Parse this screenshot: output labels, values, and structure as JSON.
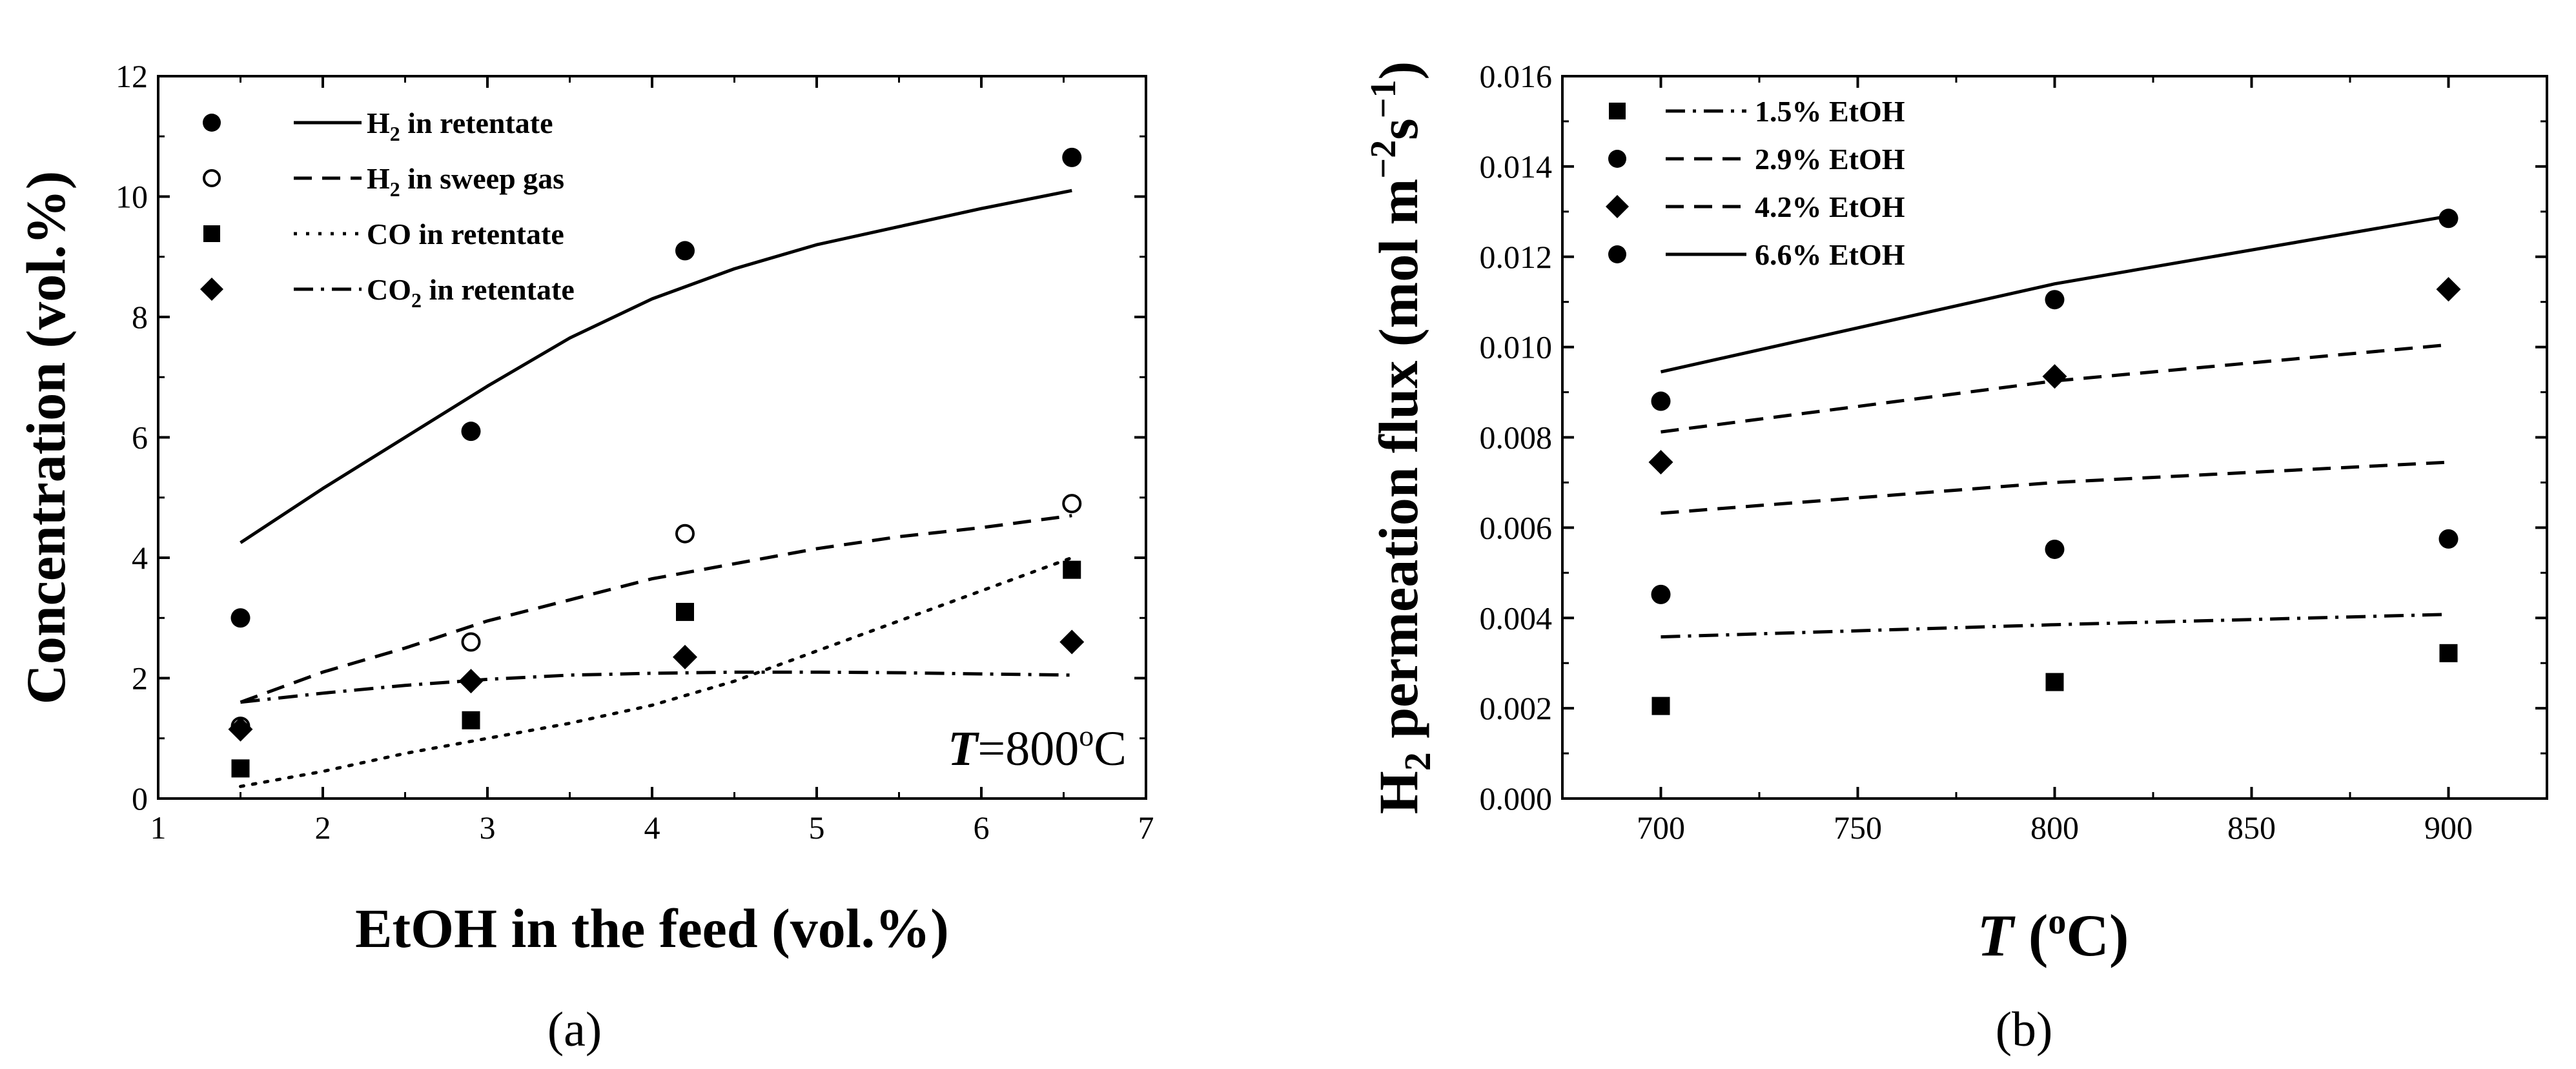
{
  "chart_data": [
    {
      "panel": "(a)",
      "type": "scatter",
      "title": "",
      "xlabel": "EtOH in the feed (vol.%)",
      "ylabel": "Concentration (vol.%)",
      "xlim": [
        1,
        7
      ],
      "ylim": [
        0,
        12
      ],
      "xticks": [
        1,
        2,
        3,
        4,
        5,
        6,
        7
      ],
      "yticks": [
        0,
        2,
        4,
        6,
        8,
        10,
        12
      ],
      "annotation": {
        "italic": "T",
        "text": "=800",
        "sup": "o",
        "unit": "C"
      },
      "series": [
        {
          "name": "H2 in retentate",
          "label_parts": [
            "H",
            "2",
            " in retentate"
          ],
          "marker": "circle-filled",
          "line": "solid",
          "x": [
            1.5,
            2.9,
            4.2,
            6.55
          ],
          "y": [
            3.0,
            6.1,
            9.1,
            10.65
          ],
          "fit_x": [
            1.5,
            2.0,
            2.5,
            3.0,
            3.5,
            4.0,
            4.5,
            5.0,
            5.5,
            6.0,
            6.55
          ],
          "fit_y": [
            4.25,
            5.15,
            6.0,
            6.85,
            7.65,
            8.3,
            8.8,
            9.2,
            9.5,
            9.8,
            10.1
          ]
        },
        {
          "name": "H2 in sweep gas",
          "label_parts": [
            "H",
            "2",
            " in sweep gas"
          ],
          "marker": "circle-open",
          "line": "dashed",
          "x": [
            1.5,
            2.9,
            4.2,
            6.55
          ],
          "y": [
            1.2,
            2.6,
            4.4,
            4.9
          ],
          "fit_x": [
            1.5,
            2.0,
            2.5,
            3.0,
            3.5,
            4.0,
            4.5,
            5.0,
            5.5,
            6.0,
            6.55
          ],
          "fit_y": [
            1.6,
            2.1,
            2.5,
            2.95,
            3.3,
            3.65,
            3.9,
            4.15,
            4.35,
            4.5,
            4.7
          ]
        },
        {
          "name": "CO in retentate",
          "label_parts": [
            "CO in retentate",
            "",
            ""
          ],
          "marker": "square-filled",
          "line": "dotted",
          "x": [
            1.5,
            2.9,
            4.2,
            6.55
          ],
          "y": [
            0.5,
            1.3,
            3.1,
            3.8
          ],
          "fit_x": [
            1.5,
            2.0,
            2.5,
            3.0,
            3.5,
            4.0,
            4.5,
            5.0,
            5.5,
            6.0,
            6.55
          ],
          "fit_y": [
            0.2,
            0.45,
            0.75,
            1.0,
            1.25,
            1.55,
            1.95,
            2.45,
            2.95,
            3.45,
            4.0
          ]
        },
        {
          "name": "CO2 in retentate",
          "label_parts": [
            "CO",
            "2",
            " in retentate"
          ],
          "marker": "diamond-filled",
          "line": "dashdot",
          "x": [
            1.5,
            2.9,
            4.2,
            6.55
          ],
          "y": [
            1.15,
            1.95,
            2.35,
            2.6
          ],
          "fit_x": [
            1.5,
            2.0,
            2.5,
            3.0,
            3.5,
            4.0,
            4.5,
            5.0,
            5.5,
            6.0,
            6.55
          ],
          "fit_y": [
            1.6,
            1.75,
            1.88,
            1.98,
            2.05,
            2.08,
            2.1,
            2.1,
            2.09,
            2.07,
            2.05
          ]
        }
      ]
    },
    {
      "panel": "(b)",
      "type": "scatter",
      "title": "",
      "xlabel": {
        "italic": "T",
        "text": " (",
        "sup": "o",
        "unit": "C)"
      },
      "ylabel": {
        "base": "H",
        "sub": "2",
        "text": " permeation flux (mol m",
        "sup1": "−2",
        "mid": "s",
        "sup2": "−1",
        "end": ")"
      },
      "xlim": [
        675,
        925
      ],
      "ylim": [
        0,
        0.016
      ],
      "xticks": [
        700,
        750,
        800,
        850,
        900
      ],
      "yticks": [
        "0.000",
        "0.002",
        "0.004",
        "0.006",
        "0.008",
        "0.010",
        "0.012",
        "0.014",
        "0.016"
      ],
      "series": [
        {
          "name": "1.5% EtOH",
          "marker": "square-filled",
          "line": "dashdot",
          "x": [
            700,
            800,
            900
          ],
          "y": [
            0.00205,
            0.00258,
            0.00322
          ],
          "fit_x": [
            700,
            800,
            900
          ],
          "fit_y": [
            0.00358,
            0.00385,
            0.00408
          ]
        },
        {
          "name": "2.9% EtOH",
          "marker": "circle-filled",
          "line": "dashed",
          "x": [
            700,
            800,
            900
          ],
          "y": [
            0.00452,
            0.00552,
            0.00575
          ],
          "fit_x": [
            700,
            800,
            900
          ],
          "fit_y": [
            0.00632,
            0.007,
            0.00745
          ]
        },
        {
          "name": "4.2% EtOH",
          "marker": "diamond-filled",
          "line": "dashed",
          "x": [
            700,
            800,
            900
          ],
          "y": [
            0.00745,
            0.00935,
            0.01128
          ],
          "fit_x": [
            700,
            800,
            900
          ],
          "fit_y": [
            0.00812,
            0.00925,
            0.01005
          ]
        },
        {
          "name": "6.6% EtOH",
          "marker": "circle-filled",
          "line": "solid",
          "x": [
            700,
            800,
            900
          ],
          "y": [
            0.0088,
            0.01105,
            0.01285
          ],
          "fit_x": [
            700,
            800,
            900
          ],
          "fit_y": [
            0.00945,
            0.0114,
            0.0129
          ]
        }
      ]
    }
  ]
}
